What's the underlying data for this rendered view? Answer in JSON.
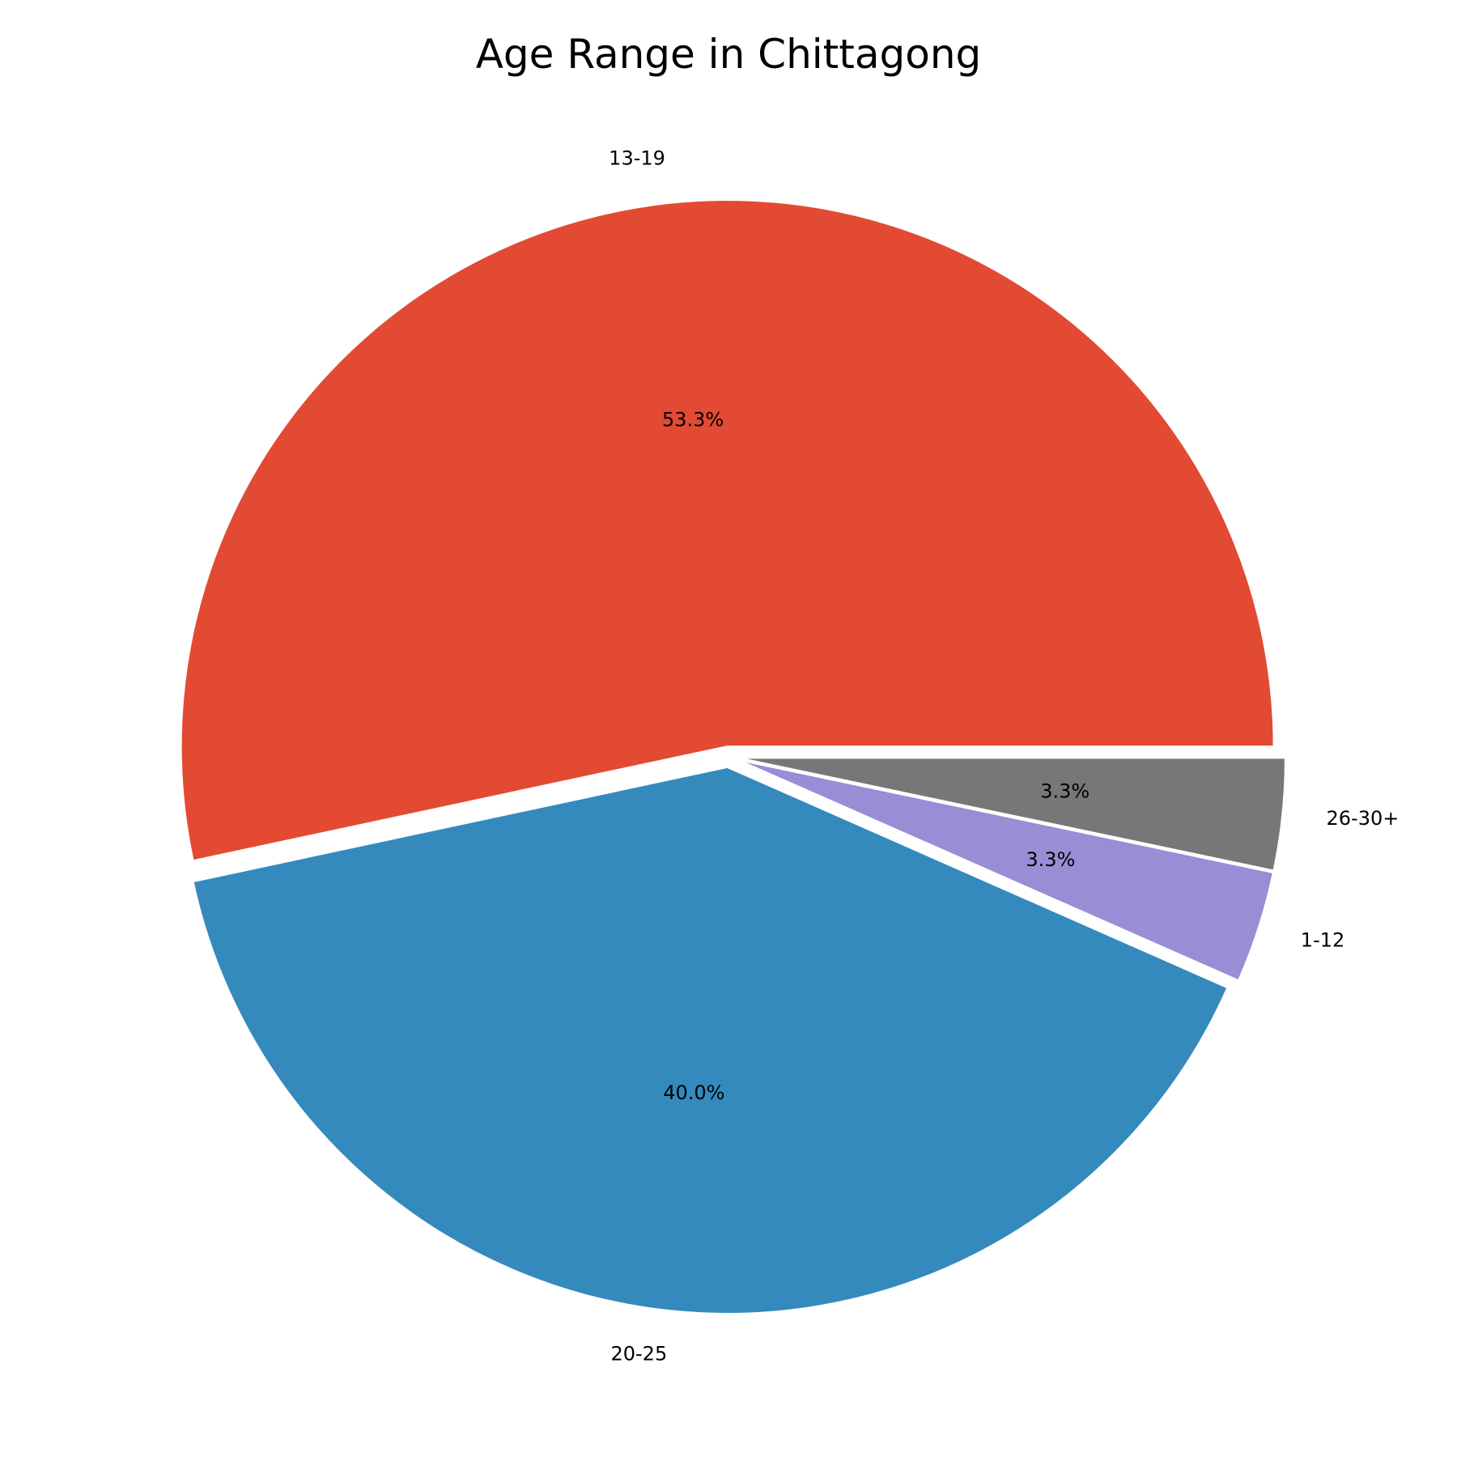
{
  "chart_data": {
    "type": "pie",
    "title": "Age Range in Chittagong",
    "start_angle_deg": 0,
    "direction": "counterclockwise",
    "explode": true,
    "slices": [
      {
        "label": "13-19",
        "value": 53.3,
        "pct_label": "53.3%",
        "color": "#E24A33"
      },
      {
        "label": "20-25",
        "value": 40.0,
        "pct_label": "40.0%",
        "color": "#348ABD"
      },
      {
        "label": "1-12",
        "value": 3.3,
        "pct_label": "3.3%",
        "color": "#988ED5"
      },
      {
        "label": "26-30+",
        "value": 3.3,
        "pct_label": "3.3%",
        "color": "#777777"
      }
    ]
  }
}
